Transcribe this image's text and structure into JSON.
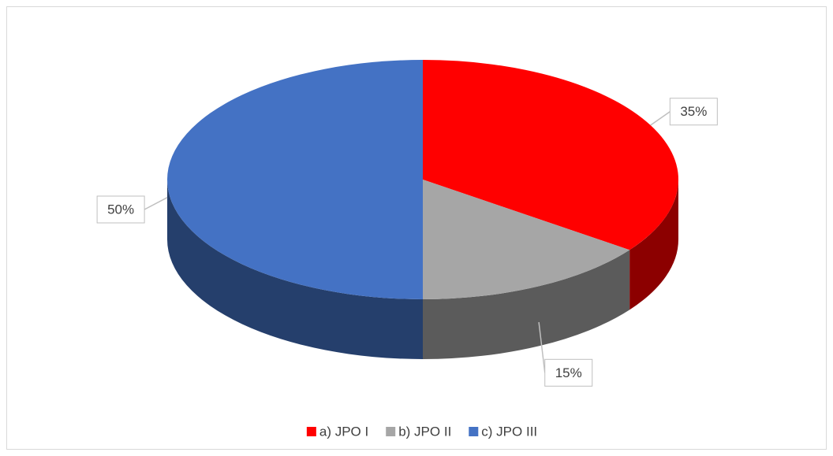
{
  "chart_data": {
    "type": "pie",
    "categories": [
      "a) JPO I",
      "b) JPO II",
      "c) JPO III"
    ],
    "values": [
      35,
      15,
      50
    ],
    "value_labels": [
      "35%",
      "15%",
      "50%"
    ],
    "colors": [
      "#ff0000",
      "#a6a6a6",
      "#4472c4"
    ],
    "legend": "bottom"
  }
}
